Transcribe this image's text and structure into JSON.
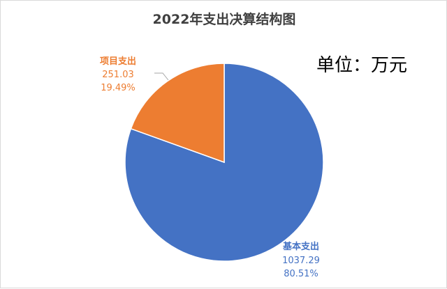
{
  "chart_data": {
    "type": "pie",
    "title": "2022年支出决算结构图",
    "unit_note": "单位：万元",
    "slices": [
      {
        "name": "基本支出",
        "value": "1037.29",
        "percent": "80.51%",
        "numeric": 1037.29,
        "color": "#4472C4"
      },
      {
        "name": "项目支出",
        "value": "251.03",
        "percent": "19.49%",
        "numeric": 251.03,
        "color": "#ED7D31"
      }
    ]
  }
}
